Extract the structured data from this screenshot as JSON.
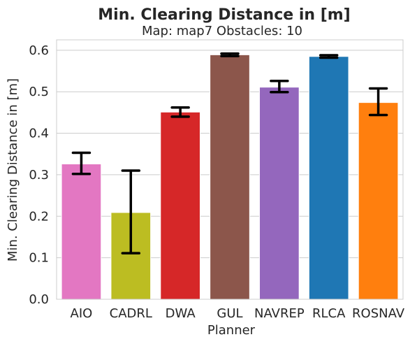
{
  "chart_data": {
    "type": "bar",
    "title": "Min. Clearing Distance in [m]",
    "subtitle": "Map: map7 Obstacles: 10",
    "xlabel": "Planner",
    "ylabel": "Min. Clearing Distance in [m]",
    "categories": [
      "AIO",
      "CADRL",
      "DWA",
      "GUL",
      "NAVREP",
      "RLCA",
      "ROSNAV"
    ],
    "values": [
      0.326,
      0.209,
      0.451,
      0.589,
      0.511,
      0.585,
      0.474
    ],
    "error_low": [
      0.302,
      0.111,
      0.44,
      0.586,
      0.499,
      0.582,
      0.444
    ],
    "error_high": [
      0.353,
      0.31,
      0.462,
      0.592,
      0.526,
      0.588,
      0.508
    ],
    "colors": [
      "#e377c2",
      "#bcbd22",
      "#d62728",
      "#8c564b",
      "#9467bd",
      "#1f77b4",
      "#ff7f0e"
    ],
    "ylim": [
      0,
      0.625
    ],
    "yticks": [
      "0.0",
      "0.1",
      "0.2",
      "0.3",
      "0.4",
      "0.5",
      "0.6"
    ],
    "ytick_values": [
      0,
      0.1,
      0.2,
      0.3,
      0.4,
      0.5,
      0.6
    ],
    "grid": "horizontal",
    "legend": "none"
  }
}
